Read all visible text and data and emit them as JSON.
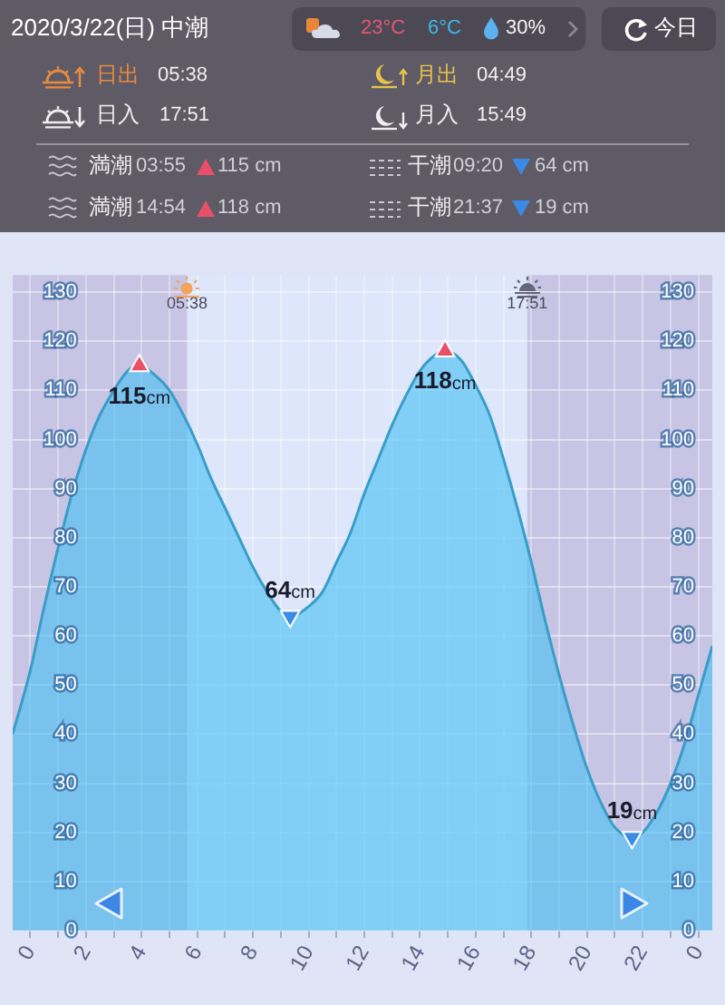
{
  "chart_data": {
    "type": "area",
    "title": "2020/3/22(日) 中潮",
    "annotations": [
      "23°C",
      "6°C",
      "30%",
      "今日",
      "日出",
      "05:38",
      "月出",
      "04:49",
      "日入",
      "17:51",
      "月入",
      "15:49",
      "満潮",
      "03:55",
      "115 cm",
      "干潮",
      "09:20",
      "64 cm",
      "満潮",
      "14:54",
      "118 cm",
      "干潮",
      "21:37",
      "19 cm",
      {
        "text": "05:38",
        "x": "2020-03-22T05:38"
      },
      {
        "text": "17:51",
        "x": "2020-03-22T17:51"
      }
    ],
    "xlim": [
      "2020-03-21T23:22",
      "2020-03-23T00:30"
    ],
    "xticks": [
      {
        "value": "2020-03-22T00:00",
        "label": "0"
      },
      {
        "value": "2020-03-22T01:00",
        "label": null
      },
      {
        "value": "2020-03-22T02:00",
        "label": "2"
      },
      {
        "value": "2020-03-22T03:00",
        "label": null
      },
      {
        "value": "2020-03-22T04:00",
        "label": "4"
      },
      {
        "value": "2020-03-22T05:00",
        "label": null
      },
      {
        "value": "2020-03-22T06:00",
        "label": "6"
      },
      {
        "value": "2020-03-22T07:00",
        "label": null
      },
      {
        "value": "2020-03-22T08:00",
        "label": "8"
      },
      {
        "value": "2020-03-22T09:00",
        "label": null
      },
      {
        "value": "2020-03-22T10:00",
        "label": "10"
      },
      {
        "value": "2020-03-22T11:00",
        "label": null
      },
      {
        "value": "2020-03-22T12:00",
        "label": "12"
      },
      {
        "value": "2020-03-22T13:00",
        "label": null
      },
      {
        "value": "2020-03-22T14:00",
        "label": "14"
      },
      {
        "value": "2020-03-22T15:00",
        "label": null
      },
      {
        "value": "2020-03-22T16:00",
        "label": "16"
      },
      {
        "value": "2020-03-22T17:00",
        "label": null
      },
      {
        "value": "2020-03-22T18:00",
        "label": "18"
      },
      {
        "value": "2020-03-22T19:00",
        "label": null
      },
      {
        "value": "2020-03-22T20:00",
        "label": "20"
      },
      {
        "value": "2020-03-22T21:00",
        "label": null
      },
      {
        "value": "2020-03-22T22:00",
        "label": "22"
      },
      {
        "value": "2020-03-22T23:00",
        "label": null
      },
      {
        "value": "2020-03-23T00:00",
        "label": "0"
      }
    ],
    "ylim": [
      0,
      133.5
    ],
    "yticks": [
      0,
      10,
      20,
      30,
      40,
      50,
      60,
      70,
      80,
      90,
      100,
      110,
      120,
      130
    ],
    "y2lim": [
      0,
      133.5
    ],
    "y2ticks": [
      0,
      10,
      20,
      30,
      40,
      50,
      60,
      70,
      80,
      90,
      100,
      110,
      120,
      130
    ],
    "grid": true,
    "bands": [
      {
        "axis": "x",
        "from": "2020-03-21T23:22",
        "to": "2020-03-22T05:38",
        "color": "#c8c5e4"
      },
      {
        "axis": "x",
        "from": "2020-03-22T17:51",
        "to": "2020-03-23T00:30",
        "color": "#c8c5e4"
      }
    ],
    "series": [
      {
        "color": "#45c0f5",
        "marker": "none",
        "x": [
          "2020-03-21T23:22",
          "2020-03-22T00:00",
          "2020-03-22T00:30",
          "2020-03-22T01:00",
          "2020-03-22T01:30",
          "2020-03-22T02:00",
          "2020-03-22T02:30",
          "2020-03-22T03:00",
          "2020-03-22T03:30",
          "2020-03-22T03:55",
          "2020-03-22T04:30",
          "2020-03-22T05:00",
          "2020-03-22T05:30",
          "2020-03-22T06:00",
          "2020-03-22T06:30",
          "2020-03-22T07:00",
          "2020-03-22T07:30",
          "2020-03-22T08:00",
          "2020-03-22T08:30",
          "2020-03-22T09:00",
          "2020-03-22T09:20",
          "2020-03-22T10:00",
          "2020-03-22T10:30",
          "2020-03-22T11:00",
          "2020-03-22T11:30",
          "2020-03-22T12:00",
          "2020-03-22T12:30",
          "2020-03-22T13:00",
          "2020-03-22T13:30",
          "2020-03-22T14:00",
          "2020-03-22T14:30",
          "2020-03-22T14:54",
          "2020-03-22T15:30",
          "2020-03-22T16:00",
          "2020-03-22T16:30",
          "2020-03-22T17:00",
          "2020-03-22T17:30",
          "2020-03-22T18:00",
          "2020-03-22T18:30",
          "2020-03-22T19:00",
          "2020-03-22T19:30",
          "2020-03-22T20:00",
          "2020-03-22T20:30",
          "2020-03-22T21:00",
          "2020-03-22T21:37",
          "2020-03-22T22:00",
          "2020-03-22T22:30",
          "2020-03-22T23:00",
          "2020-03-22T23:30",
          "2020-03-23T00:00",
          "2020-03-23T00:30"
        ],
        "values": [
          40,
          53,
          66,
          78,
          89,
          98,
          105,
          110,
          114,
          115,
          113,
          110,
          105,
          99,
          92,
          86,
          80,
          74,
          69,
          65,
          64,
          66,
          69,
          75,
          81,
          89,
          96,
          103,
          109,
          114,
          117,
          118,
          116,
          111,
          105,
          96,
          86,
          75,
          63,
          52,
          42,
          33,
          26,
          21,
          19,
          20,
          24,
          30,
          38,
          48,
          58
        ]
      },
      {
        "type": "scatter",
        "color": "#e8506a",
        "marker": "triangle",
        "x": [
          "2020-03-22T03:55",
          "2020-03-22T14:54"
        ],
        "values": [
          115,
          118
        ],
        "value_labels": [
          "115cm",
          "118cm"
        ]
      },
      {
        "type": "scatter",
        "color": "#3a8ae6",
        "marker": "triangle",
        "x": [
          "2020-03-22T09:20",
          "2020-03-22T21:37"
        ],
        "values": [
          64,
          19
        ],
        "value_labels": [
          "64cm",
          "19cm"
        ]
      }
    ]
  }
}
